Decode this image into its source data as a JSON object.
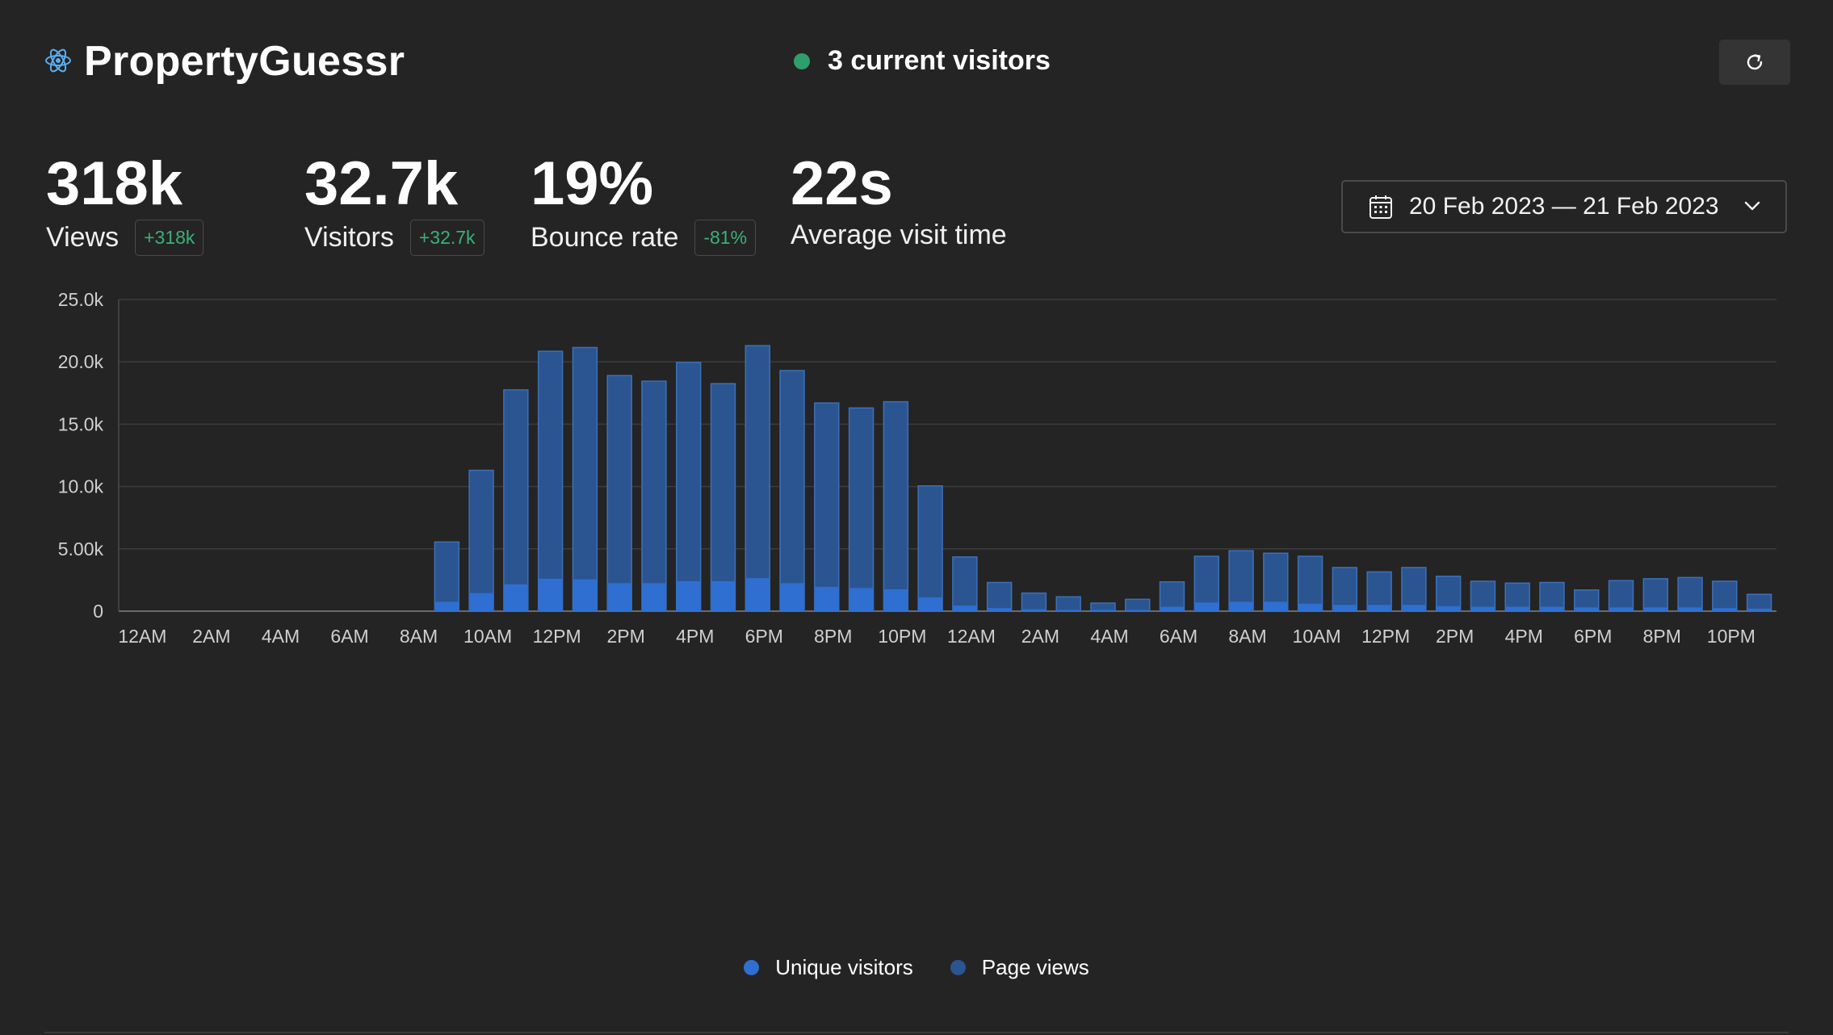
{
  "app": {
    "title": "PropertyGuessr",
    "logo_icon": "atom-icon"
  },
  "live": {
    "text": "3 current visitors",
    "dot_color": "#2f9e6b"
  },
  "refresh": {
    "icon": "refresh-icon"
  },
  "stats": [
    {
      "value": "318k",
      "label": "Views",
      "change": "+318k"
    },
    {
      "value": "32.7k",
      "label": "Visitors",
      "change": "+32.7k"
    },
    {
      "value": "19%",
      "label": "Bounce rate",
      "change": "-81%"
    },
    {
      "value": "22s",
      "label": "Average visit time",
      "change": ""
    }
  ],
  "date_range": {
    "label": "20 Feb 2023 — 21 Feb 2023",
    "icon": "calendar-icon"
  },
  "chart_data": {
    "type": "bar",
    "title": "",
    "xlabel": "",
    "ylabel": "",
    "stacked": "overlay",
    "ylim": [
      0,
      25000
    ],
    "y_ticks": [
      {
        "value": 0,
        "label": "0"
      },
      {
        "value": 5000,
        "label": "5.00k"
      },
      {
        "value": 10000,
        "label": "10.0k"
      },
      {
        "value": 15000,
        "label": "15.0k"
      },
      {
        "value": 20000,
        "label": "20.0k"
      },
      {
        "value": 25000,
        "label": "25.0k"
      }
    ],
    "x_tick_labels": [
      "12AM",
      "2AM",
      "4AM",
      "6AM",
      "8AM",
      "10AM",
      "12PM",
      "2PM",
      "4PM",
      "6PM",
      "8PM",
      "10PM",
      "12AM",
      "2AM",
      "4AM",
      "6AM",
      "8AM",
      "10AM",
      "12PM",
      "2PM",
      "4PM",
      "6PM",
      "8PM",
      "10PM"
    ],
    "grid": true,
    "legend_position": "bottom-center",
    "colors": {
      "unique_visitors": "#2e6fd1",
      "page_views": "#2b5591",
      "page_views_border": "#3d6fb8"
    },
    "series": [
      {
        "name": "Unique visitors",
        "values": [
          0,
          0,
          0,
          0,
          0,
          0,
          0,
          0,
          0,
          750,
          1450,
          2150,
          2600,
          2550,
          2250,
          2250,
          2400,
          2400,
          2650,
          2250,
          1950,
          1850,
          1750,
          1100,
          450,
          250,
          150,
          100,
          100,
          100,
          350,
          700,
          750,
          750,
          600,
          500,
          500,
          500,
          400,
          350,
          350,
          350,
          300,
          300,
          300,
          300,
          250,
          200
        ]
      },
      {
        "name": "Page views",
        "values": [
          0,
          0,
          0,
          0,
          0,
          0,
          0,
          0,
          0,
          5550,
          11300,
          17750,
          20850,
          21150,
          18900,
          18450,
          19950,
          18250,
          21300,
          19300,
          16700,
          16300,
          16800,
          10050,
          4350,
          2300,
          1450,
          1150,
          650,
          950,
          2350,
          4400,
          4850,
          4650,
          4400,
          3500,
          3150,
          3500,
          2800,
          2400,
          2250,
          2300,
          1700,
          2450,
          2600,
          2700,
          2400,
          1350
        ]
      }
    ]
  },
  "legend": [
    {
      "label": "Unique visitors",
      "color": "#2e6fd1"
    },
    {
      "label": "Page views",
      "color": "#2b5591"
    }
  ]
}
